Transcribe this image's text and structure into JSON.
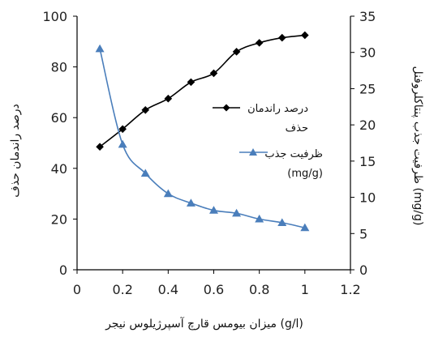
{
  "chart_data": {
    "type": "line",
    "title": "",
    "xlabel": "میزان بیومس قارچ آسپرژیلوس نیجر (g/l)",
    "ylabel": "درصد راندمان حذف",
    "y2label": "ظرفیت جذب پنتاکلروفنل (mg/g)",
    "xlim": [
      0,
      1.2
    ],
    "ylim": [
      0,
      100
    ],
    "y2lim": [
      0,
      35
    ],
    "x_ticks": [
      "0",
      "0.2",
      "0.4",
      "0.6",
      "0.8",
      "1",
      "1.2"
    ],
    "y_ticks": [
      "0",
      "20",
      "40",
      "60",
      "80",
      "100"
    ],
    "y2_ticks": [
      "0",
      "5",
      "10",
      "15",
      "20",
      "25",
      "30",
      "35"
    ],
    "grid": false,
    "legend_position": "right-center",
    "series": [
      {
        "name": "درصد راندمان حذف",
        "axis": "left",
        "marker": "diamond",
        "color": "#000000",
        "x": [
          0.1,
          0.2,
          0.3,
          0.4,
          0.5,
          0.6,
          0.7,
          0.8,
          0.9,
          1.0
        ],
        "values": [
          48.5,
          55.5,
          63,
          67.5,
          74,
          77.5,
          86,
          89.5,
          91.5,
          92.5
        ]
      },
      {
        "name": "ظرفیت جذب (mg/g)",
        "axis": "right",
        "marker": "triangle",
        "color": "#4a7ebb",
        "x": [
          0.1,
          0.2,
          0.3,
          0.4,
          0.5,
          0.6,
          0.7,
          0.8,
          0.9,
          1.0
        ],
        "values": [
          30.5,
          17.3,
          13.3,
          10.5,
          9.2,
          8.2,
          7.8,
          7.0,
          6.5,
          5.8
        ]
      }
    ]
  },
  "legend": {
    "series1_line1": "درصد راندمان",
    "series1_line2": "حذف",
    "series2_line1": "ظرفیت جذب",
    "series2_line2": "(mg/g)"
  }
}
